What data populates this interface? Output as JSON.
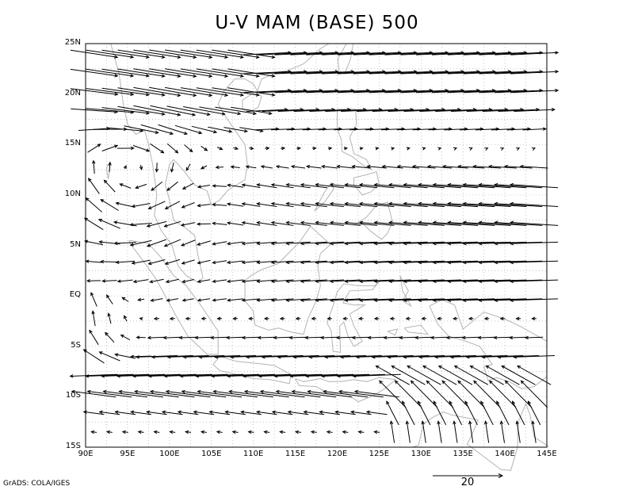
{
  "title": "U-V MAM (BASE) 500",
  "credit": "GrADS: COLA/IGES",
  "x_axis": {
    "range": [
      90,
      145
    ],
    "ticks": [
      {
        "value": 90,
        "label": "90E"
      },
      {
        "value": 95,
        "label": "95E"
      },
      {
        "value": 100,
        "label": "100E"
      },
      {
        "value": 105,
        "label": "105E"
      },
      {
        "value": 110,
        "label": "110E"
      },
      {
        "value": 115,
        "label": "115E"
      },
      {
        "value": 120,
        "label": "120E"
      },
      {
        "value": 125,
        "label": "125E"
      },
      {
        "value": 130,
        "label": "130E"
      },
      {
        "value": 135,
        "label": "135E"
      },
      {
        "value": 140,
        "label": "140E"
      },
      {
        "value": 145,
        "label": "145E"
      }
    ]
  },
  "y_axis": {
    "range": [
      -15,
      25
    ],
    "ticks": [
      {
        "value": 25,
        "label": "25N"
      },
      {
        "value": 20,
        "label": "20N"
      },
      {
        "value": 15,
        "label": "15N"
      },
      {
        "value": 10,
        "label": "10N"
      },
      {
        "value": 5,
        "label": "5N"
      },
      {
        "value": 0,
        "label": "EQ"
      },
      {
        "value": -5,
        "label": "5S"
      },
      {
        "value": -10,
        "label": "10S"
      },
      {
        "value": -15,
        "label": "15S"
      }
    ]
  },
  "reference_vector": {
    "magnitude": 20,
    "label": "20"
  },
  "colors": {
    "arrows": "#000000",
    "coast": "#b4b4b4",
    "grid": "#a0a0a0",
    "frame": "#000000"
  },
  "chart_data": {
    "type": "vector field",
    "title": "U-V MAM (BASE) 500",
    "xlim": [
      90,
      145
    ],
    "ylim": [
      -15,
      25
    ],
    "grid": "dotted",
    "grid_spacing_deg": 2.5,
    "wind_units_ref": 20,
    "regime_summary": [
      {
        "region": "north of 17N",
        "flow": "westerly, strongest near 22N (~15-20)"
      },
      {
        "region": "0-15N east of 120E",
        "flow": "easterly trades (~5-15)"
      },
      {
        "region": "near 95E 10-15N",
        "flow": "cyclonic turning, northerly/southward"
      },
      {
        "region": "5S-12S",
        "flow": "strong easterly (~10-15)"
      },
      {
        "region": "near 90-95E south of equator",
        "flow": "turning northward"
      }
    ]
  }
}
